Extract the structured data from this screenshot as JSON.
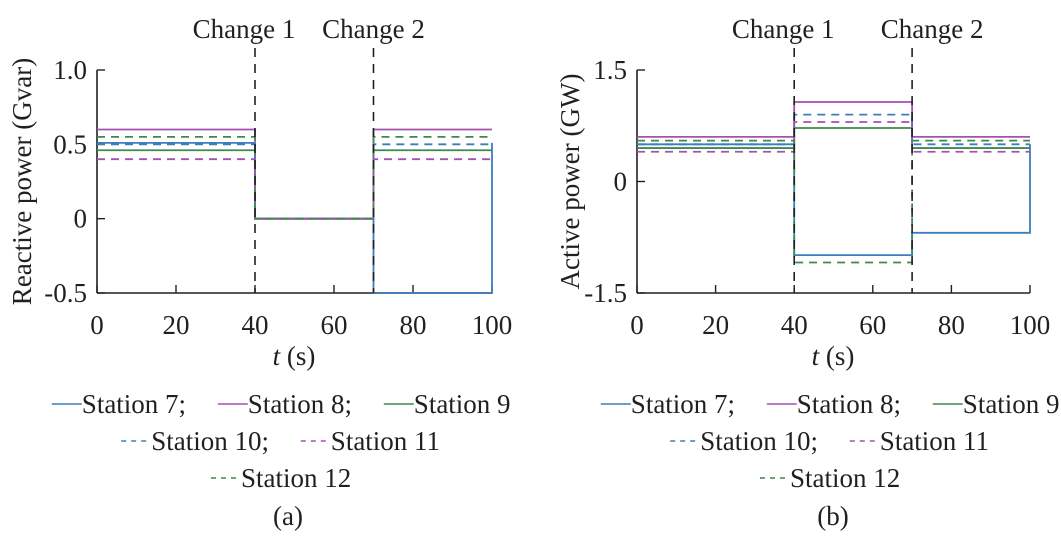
{
  "chart_data": [
    {
      "panel": "(a)",
      "type": "line",
      "xlabel_italic": "t",
      "xlabel_rest": " (s)",
      "ylabel": "Reactive power (Gvar)",
      "xlim": [
        0,
        100
      ],
      "ylim": [
        -0.5,
        1.0
      ],
      "xticks": [
        0,
        20,
        40,
        60,
        80,
        100
      ],
      "yticks": [
        -0.5,
        0,
        0.5,
        1.0
      ],
      "ytick_labels": [
        "-0.5",
        "0",
        "0.5",
        "1.0"
      ],
      "annotations": [
        {
          "x": 40,
          "text": "Change 1"
        },
        {
          "x": 70,
          "text": "Change 2"
        }
      ],
      "series": [
        {
          "name": "Station 7",
          "color": "#3b7dbd",
          "dash": false,
          "points": [
            [
              0,
              0.51
            ],
            [
              40,
              0.51
            ],
            [
              40,
              0
            ],
            [
              70,
              0
            ],
            [
              70,
              -0.5
            ],
            [
              100,
              -0.5
            ],
            [
              100,
              0.51
            ]
          ]
        },
        {
          "name": "Station 8",
          "color": "#a451b0",
          "dash": false,
          "points": [
            [
              0,
              0.6
            ],
            [
              40,
              0.6
            ],
            [
              40,
              0
            ],
            [
              70,
              0
            ],
            [
              70,
              0.6
            ],
            [
              100,
              0.6
            ]
          ]
        },
        {
          "name": "Station 9",
          "color": "#3d8a4c",
          "dash": false,
          "points": [
            [
              0,
              0.46
            ],
            [
              40,
              0.46
            ],
            [
              40,
              0
            ],
            [
              70,
              0
            ],
            [
              70,
              0.46
            ],
            [
              100,
              0.46
            ]
          ]
        },
        {
          "name": "Station 10",
          "color": "#3b7dbd",
          "dash": true,
          "points": [
            [
              0,
              0.5
            ],
            [
              40,
              0.5
            ],
            [
              40,
              0
            ],
            [
              70,
              0
            ],
            [
              70,
              0.5
            ],
            [
              100,
              0.5
            ]
          ]
        },
        {
          "name": "Station 11",
          "color": "#a451b0",
          "dash": true,
          "points": [
            [
              0,
              0.4
            ],
            [
              40,
              0.4
            ],
            [
              40,
              0
            ],
            [
              70,
              0
            ],
            [
              70,
              0.4
            ],
            [
              100,
              0.4
            ]
          ]
        },
        {
          "name": "Station 12",
          "color": "#3d8a4c",
          "dash": true,
          "points": [
            [
              0,
              0.55
            ],
            [
              40,
              0.55
            ],
            [
              40,
              0
            ],
            [
              70,
              0
            ],
            [
              70,
              0.55
            ],
            [
              100,
              0.55
            ]
          ]
        }
      ]
    },
    {
      "panel": "(b)",
      "type": "line",
      "xlabel_italic": "t",
      "xlabel_rest": " (s)",
      "ylabel": "Active power (GW)",
      "xlim": [
        0,
        100
      ],
      "ylim": [
        -1.5,
        1.5
      ],
      "xticks": [
        0,
        20,
        40,
        60,
        80,
        100
      ],
      "yticks": [
        -1.5,
        0,
        1.5
      ],
      "ytick_labels": [
        "-1.5",
        "0",
        "1.5"
      ],
      "annotations": [
        {
          "x": 40,
          "text": "Change 1"
        },
        {
          "x": 70,
          "text": "Change 2"
        }
      ],
      "series": [
        {
          "name": "Station 7",
          "color": "#3b7dbd",
          "dash": false,
          "points": [
            [
              0,
              0.5
            ],
            [
              40,
              0.5
            ],
            [
              40,
              -0.99
            ],
            [
              70,
              -0.99
            ],
            [
              70,
              -0.69
            ],
            [
              100,
              -0.69
            ],
            [
              100,
              0.5
            ]
          ]
        },
        {
          "name": "Station 8",
          "color": "#a451b0",
          "dash": false,
          "points": [
            [
              0,
              0.6
            ],
            [
              40,
              0.6
            ],
            [
              40,
              1.07
            ],
            [
              70,
              1.07
            ],
            [
              70,
              0.6
            ],
            [
              100,
              0.6
            ]
          ]
        },
        {
          "name": "Station 9",
          "color": "#3d8a4c",
          "dash": false,
          "points": [
            [
              0,
              0.45
            ],
            [
              40,
              0.45
            ],
            [
              40,
              0.72
            ],
            [
              70,
              0.72
            ],
            [
              70,
              0.45
            ],
            [
              100,
              0.45
            ]
          ]
        },
        {
          "name": "Station 10",
          "color": "#3b7dbd",
          "dash": true,
          "points": [
            [
              0,
              0.5
            ],
            [
              40,
              0.5
            ],
            [
              40,
              0.9
            ],
            [
              70,
              0.9
            ],
            [
              70,
              0.5
            ],
            [
              100,
              0.5
            ]
          ]
        },
        {
          "name": "Station 11",
          "color": "#a451b0",
          "dash": true,
          "points": [
            [
              0,
              0.4
            ],
            [
              40,
              0.4
            ],
            [
              40,
              0.8
            ],
            [
              70,
              0.8
            ],
            [
              70,
              0.4
            ],
            [
              100,
              0.4
            ]
          ]
        },
        {
          "name": "Station 12",
          "color": "#3d8a4c",
          "dash": true,
          "points": [
            [
              0,
              0.55
            ],
            [
              40,
              0.55
            ],
            [
              40,
              -1.09
            ],
            [
              70,
              -1.09
            ],
            [
              70,
              0.55
            ],
            [
              100,
              0.55
            ]
          ]
        }
      ]
    }
  ],
  "legend": {
    "rows": [
      [
        {
          "label": "Station 7;",
          "series": 0
        },
        {
          "label": "Station 8;",
          "series": 1
        },
        {
          "label": "Station 9",
          "series": 2
        }
      ],
      [
        {
          "label": "Station 10;",
          "series": 3
        },
        {
          "label": "Station 11",
          "series": 4
        }
      ],
      [
        {
          "label": "Station 12",
          "series": 5
        }
      ]
    ]
  }
}
